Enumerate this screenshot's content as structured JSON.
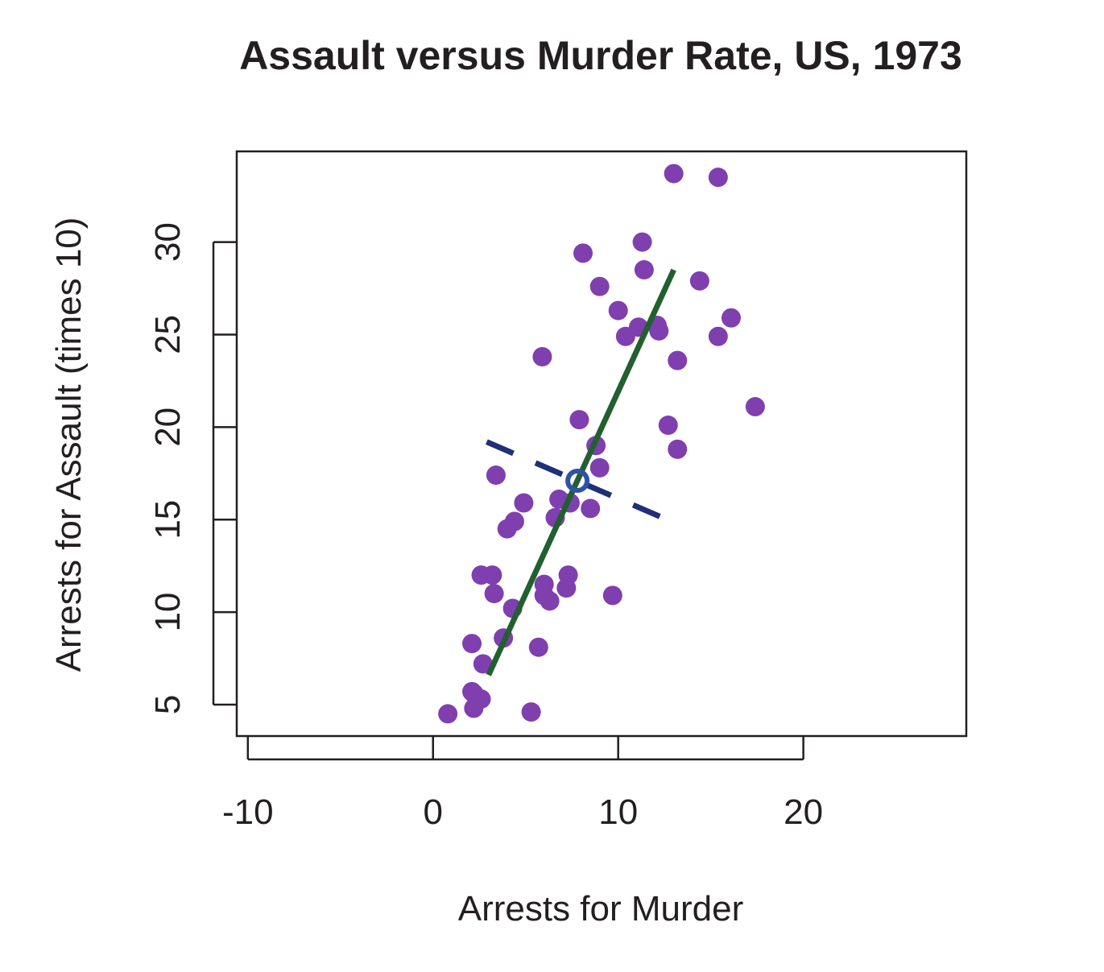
{
  "chart_data": {
    "type": "scatter",
    "title": "Assault versus Murder Rate, US, 1973",
    "xlabel": "Arrests for Murder",
    "ylabel": "Arrests for Assault (times 10)",
    "xlim": [
      -10.6,
      28.8
    ],
    "ylim": [
      3.3,
      34.9
    ],
    "x_ticks": [
      -10,
      0,
      10,
      20
    ],
    "y_ticks": [
      5,
      10,
      15,
      20,
      25,
      30
    ],
    "x_tick_labels": [
      "-10",
      "0",
      "10",
      "20"
    ],
    "y_tick_labels": [
      "5",
      "10",
      "15",
      "20",
      "25",
      "30"
    ],
    "grid": false,
    "colors": {
      "points": "#7f3fae",
      "regression_line": "#22602f",
      "perpendicular_line": "#1f2f78",
      "mean_marker": "#2e52a8",
      "text": "#231f20"
    },
    "points": [
      {
        "x": 13.2,
        "y": 23.6
      },
      {
        "x": 10.0,
        "y": 26.3
      },
      {
        "x": 8.1,
        "y": 29.4
      },
      {
        "x": 8.8,
        "y": 19.0
      },
      {
        "x": 9.0,
        "y": 27.6
      },
      {
        "x": 7.9,
        "y": 20.4
      },
      {
        "x": 3.3,
        "y": 11.0
      },
      {
        "x": 5.9,
        "y": 23.8
      },
      {
        "x": 15.4,
        "y": 33.5
      },
      {
        "x": 17.4,
        "y": 21.1
      },
      {
        "x": 5.3,
        "y": 4.6
      },
      {
        "x": 2.6,
        "y": 12.0
      },
      {
        "x": 10.4,
        "y": 24.9
      },
      {
        "x": 7.2,
        "y": 11.3
      },
      {
        "x": 2.2,
        "y": 5.6
      },
      {
        "x": 6.0,
        "y": 11.5
      },
      {
        "x": 9.7,
        "y": 10.9
      },
      {
        "x": 15.4,
        "y": 24.9
      },
      {
        "x": 2.1,
        "y": 8.3
      },
      {
        "x": 11.3,
        "y": 30.0
      },
      {
        "x": 4.4,
        "y": 14.9
      },
      {
        "x": 12.1,
        "y": 25.5
      },
      {
        "x": 2.7,
        "y": 7.2
      },
      {
        "x": 16.1,
        "y": 25.9
      },
      {
        "x": 9.0,
        "y": 17.8
      },
      {
        "x": 6.0,
        "y": 10.9
      },
      {
        "x": 4.3,
        "y": 10.2
      },
      {
        "x": 12.2,
        "y": 25.2
      },
      {
        "x": 2.1,
        "y": 5.7
      },
      {
        "x": 7.4,
        "y": 15.9
      },
      {
        "x": 11.4,
        "y": 28.5
      },
      {
        "x": 11.1,
        "y": 25.4
      },
      {
        "x": 13.0,
        "y": 33.7
      },
      {
        "x": 0.8,
        "y": 4.5
      },
      {
        "x": 7.3,
        "y": 12.0
      },
      {
        "x": 6.6,
        "y": 15.1
      },
      {
        "x": 4.9,
        "y": 15.9
      },
      {
        "x": 6.3,
        "y": 10.6
      },
      {
        "x": 3.4,
        "y": 17.4
      },
      {
        "x": 14.4,
        "y": 27.9
      },
      {
        "x": 3.8,
        "y": 8.6
      },
      {
        "x": 13.2,
        "y": 18.8
      },
      {
        "x": 12.7,
        "y": 20.1
      },
      {
        "x": 3.2,
        "y": 12.0
      },
      {
        "x": 2.2,
        "y": 4.8
      },
      {
        "x": 8.5,
        "y": 15.6
      },
      {
        "x": 4.0,
        "y": 14.5
      },
      {
        "x": 5.7,
        "y": 8.1
      },
      {
        "x": 2.6,
        "y": 5.3
      },
      {
        "x": 6.8,
        "y": 16.1
      }
    ],
    "regression_line": {
      "x": [
        3.0,
        13.0
      ],
      "y": [
        6.6,
        28.5
      ]
    },
    "perpendicular_line": {
      "x": [
        2.9,
        13.1
      ],
      "y": [
        19.2,
        14.8
      ]
    },
    "mean_point": {
      "x": 7.8,
      "y": 17.1
    }
  }
}
